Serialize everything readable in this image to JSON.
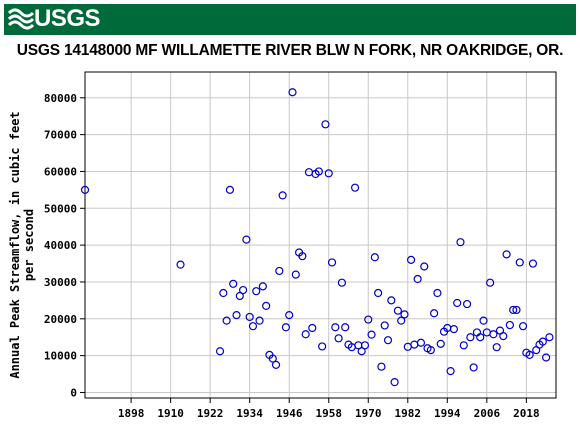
{
  "header": {
    "logo_text": "USGS",
    "logo_icon": "usgs-wave-icon",
    "banner_color": "#006a3b"
  },
  "chart_data": {
    "type": "scatter",
    "title": "USGS 14148000 MF WILLAMETTE RIVER BLW N FORK, NR OAKRIDGE, OR.",
    "ylabel_line1": "Annual Peak Streamflow, in cubic feet",
    "ylabel_line2": "per second",
    "xlabel": "",
    "xlim": [
      1884,
      2027
    ],
    "ylim": [
      -1500,
      87000
    ],
    "xticks": [
      1898,
      1910,
      1922,
      1934,
      1946,
      1958,
      1970,
      1982,
      1994,
      2006,
      2018
    ],
    "yticks": [
      0,
      10000,
      20000,
      30000,
      40000,
      50000,
      60000,
      70000,
      80000
    ],
    "ytick_labels": [
      "0",
      "10000",
      "20000",
      "30000",
      "40000",
      "50000",
      "60000",
      "70000",
      "80000"
    ],
    "grid": true,
    "marker_color": "#0000cc",
    "points": [
      [
        1884,
        55000
      ],
      [
        1913,
        34700
      ],
      [
        1925,
        11200
      ],
      [
        1926,
        27000
      ],
      [
        1927,
        19500
      ],
      [
        1928,
        55000
      ],
      [
        1929,
        29500
      ],
      [
        1930,
        21000
      ],
      [
        1931,
        26200
      ],
      [
        1932,
        27800
      ],
      [
        1933,
        41500
      ],
      [
        1934,
        20500
      ],
      [
        1935,
        18000
      ],
      [
        1936,
        27500
      ],
      [
        1937,
        19500
      ],
      [
        1938,
        28800
      ],
      [
        1939,
        23500
      ],
      [
        1940,
        10200
      ],
      [
        1941,
        9200
      ],
      [
        1942,
        7500
      ],
      [
        1943,
        33000
      ],
      [
        1944,
        53500
      ],
      [
        1945,
        17700
      ],
      [
        1946,
        21000
      ],
      [
        1947,
        81500
      ],
      [
        1948,
        32000
      ],
      [
        1949,
        38000
      ],
      [
        1950,
        37000
      ],
      [
        1951,
        15800
      ],
      [
        1952,
        59800
      ],
      [
        1953,
        17500
      ],
      [
        1954,
        59300
      ],
      [
        1955,
        60000
      ],
      [
        1956,
        12500
      ],
      [
        1957,
        72800
      ],
      [
        1958,
        59500
      ],
      [
        1959,
        35300
      ],
      [
        1960,
        17700
      ],
      [
        1961,
        14700
      ],
      [
        1962,
        29800
      ],
      [
        1963,
        17700
      ],
      [
        1964,
        13000
      ],
      [
        1965,
        12300
      ],
      [
        1966,
        55600
      ],
      [
        1967,
        12800
      ],
      [
        1968,
        11200
      ],
      [
        1969,
        12800
      ],
      [
        1970,
        19800
      ],
      [
        1971,
        15700
      ],
      [
        1972,
        36700
      ],
      [
        1973,
        27000
      ],
      [
        1974,
        7000
      ],
      [
        1975,
        18200
      ],
      [
        1976,
        14200
      ],
      [
        1977,
        25000
      ],
      [
        1978,
        2800
      ],
      [
        1979,
        22200
      ],
      [
        1980,
        19500
      ],
      [
        1981,
        21200
      ],
      [
        1982,
        12400
      ],
      [
        1983,
        36000
      ],
      [
        1984,
        13000
      ],
      [
        1985,
        30800
      ],
      [
        1986,
        13500
      ],
      [
        1987,
        34200
      ],
      [
        1988,
        12000
      ],
      [
        1989,
        11500
      ],
      [
        1990,
        21500
      ],
      [
        1991,
        27000
      ],
      [
        1992,
        13200
      ],
      [
        1993,
        16500
      ],
      [
        1994,
        17500
      ],
      [
        1995,
        5800
      ],
      [
        1996,
        17200
      ],
      [
        1997,
        24300
      ],
      [
        1998,
        40800
      ],
      [
        1999,
        12800
      ],
      [
        2000,
        24000
      ],
      [
        2001,
        15000
      ],
      [
        2002,
        6800
      ],
      [
        2003,
        16300
      ],
      [
        2004,
        15000
      ],
      [
        2005,
        19500
      ],
      [
        2006,
        16300
      ],
      [
        2007,
        29800
      ],
      [
        2008,
        15800
      ],
      [
        2009,
        12300
      ],
      [
        2010,
        16800
      ],
      [
        2011,
        15300
      ],
      [
        2012,
        37500
      ],
      [
        2013,
        18300
      ],
      [
        2014,
        22400
      ],
      [
        2015,
        22400
      ],
      [
        2016,
        35300
      ],
      [
        2017,
        18000
      ],
      [
        2018,
        10800
      ],
      [
        2019,
        10200
      ],
      [
        2020,
        35000
      ],
      [
        2021,
        11500
      ],
      [
        2022,
        13000
      ],
      [
        2023,
        13800
      ],
      [
        2024,
        9500
      ],
      [
        2025,
        15000
      ]
    ]
  }
}
